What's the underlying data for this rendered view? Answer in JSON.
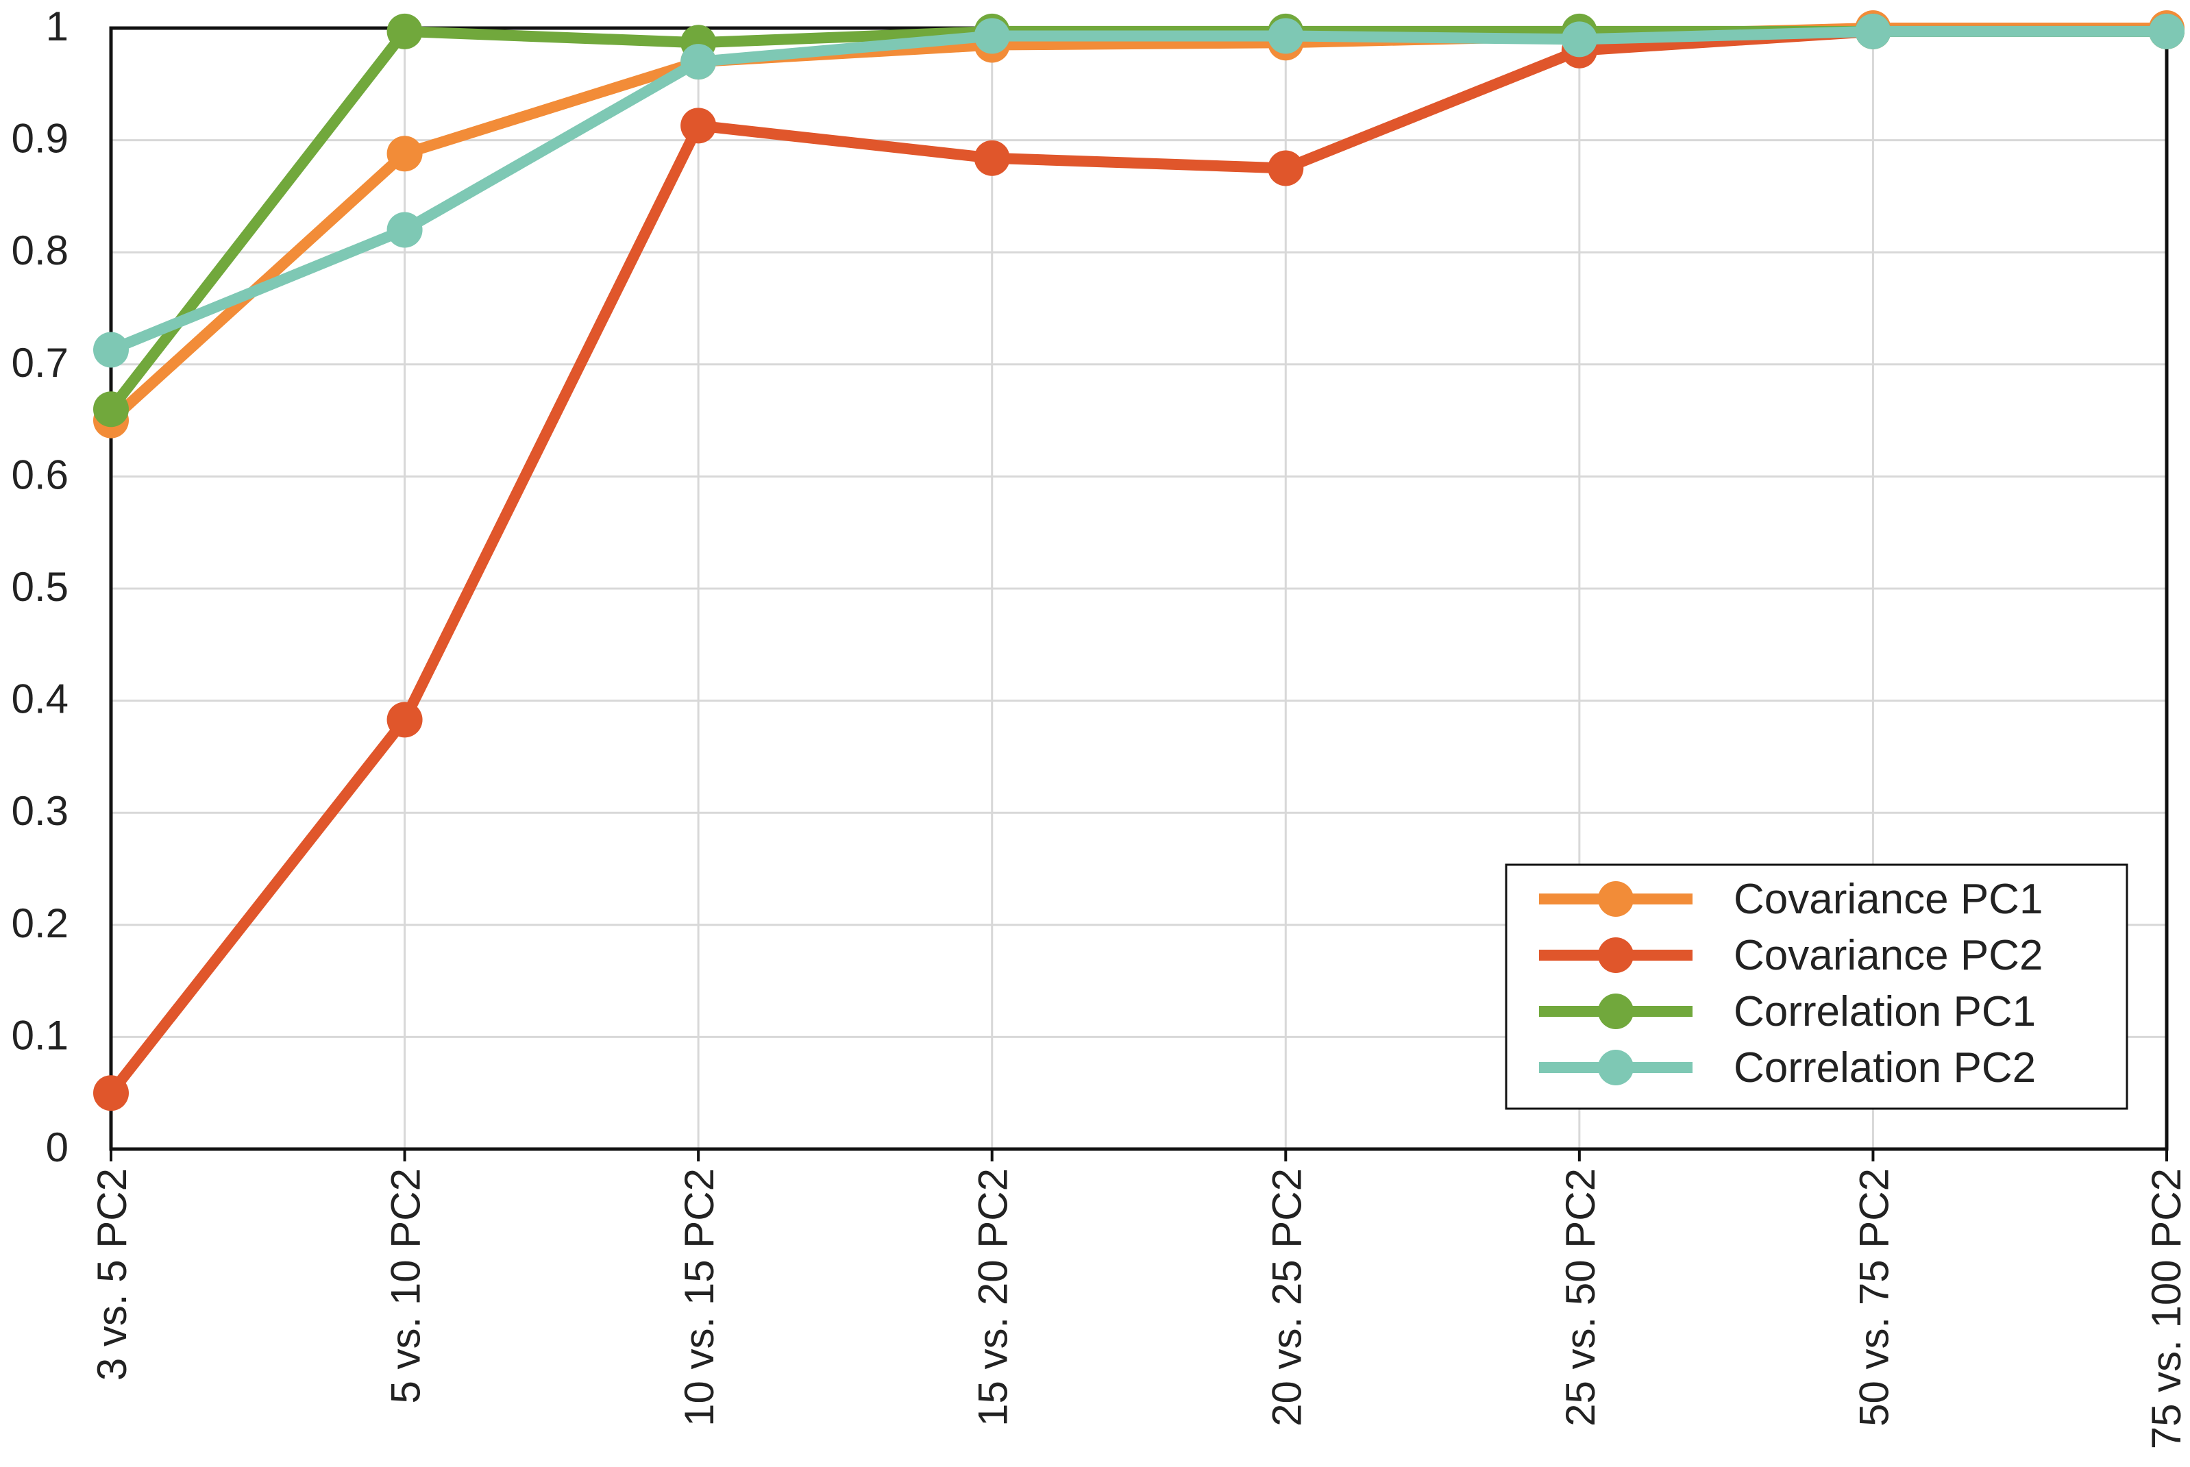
{
  "chart_data": {
    "type": "line",
    "title": "",
    "xlabel": "",
    "ylabel": "",
    "categories": [
      "3 vs. 5 PC2",
      "5 vs. 10 PC2",
      "10 vs. 15 PC2",
      "15 vs. 20 PC2",
      "20 vs. 25 PC2",
      "25 vs. 50 PC2",
      "50 vs. 75 PC2",
      "75 vs. 100 PC2"
    ],
    "y_ticks": [
      "0",
      "0.1",
      "0.2",
      "0.3",
      "0.4",
      "0.5",
      "0.6",
      "0.7",
      "0.8",
      "0.9",
      "1"
    ],
    "ylim": [
      0,
      1
    ],
    "grid": true,
    "legend_position": "bottom-right",
    "series": [
      {
        "name": "Covariance PC1",
        "color": "#F28C38",
        "values": [
          0.65,
          0.888,
          0.97,
          0.985,
          0.987,
          0.993,
          1.0,
          1.0
        ]
      },
      {
        "name": "Covariance PC2",
        "color": "#E0562B",
        "values": [
          0.05,
          0.383,
          0.913,
          0.884,
          0.875,
          0.98,
          0.997,
          0.997
        ]
      },
      {
        "name": "Correlation PC1",
        "color": "#71A83C",
        "values": [
          0.66,
          0.997,
          0.987,
          0.997,
          0.997,
          0.997,
          0.997,
          0.997
        ]
      },
      {
        "name": "Correlation PC2",
        "color": "#7EC8B4",
        "values": [
          0.713,
          0.82,
          0.97,
          0.993,
          0.993,
          0.99,
          0.997,
          0.997
        ]
      }
    ]
  }
}
